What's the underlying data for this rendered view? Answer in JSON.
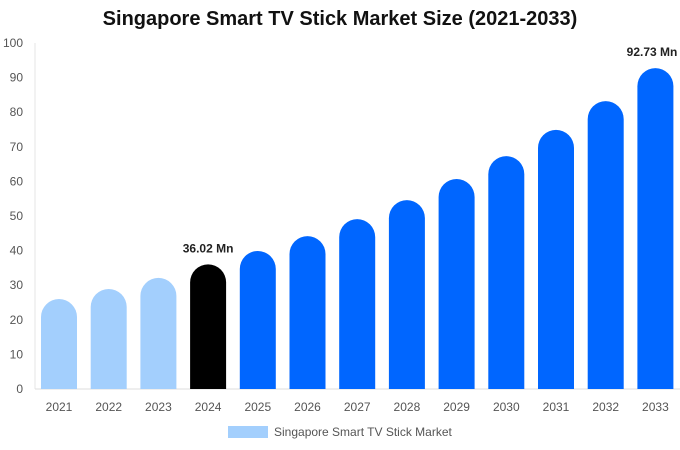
{
  "chart_data": {
    "type": "bar",
    "title": "Singapore Smart TV Stick Market Size (2021-2033)",
    "categories": [
      "2021",
      "2022",
      "2023",
      "2024",
      "2025",
      "2026",
      "2027",
      "2028",
      "2029",
      "2030",
      "2031",
      "2032",
      "2033"
    ],
    "series": [
      {
        "name": "Singapore Smart TV Stick Market",
        "values": [
          26.0,
          28.9,
          32.1,
          36.02,
          39.9,
          44.2,
          49.1,
          54.6,
          60.7,
          67.3,
          74.9,
          83.2,
          92.73
        ]
      }
    ],
    "data_labels": {
      "3": "36.02 Mn",
      "12": "92.73 Mn"
    },
    "ylim": [
      0,
      100
    ],
    "yticks": [
      0,
      10,
      20,
      30,
      40,
      50,
      60,
      70,
      80,
      90,
      100
    ],
    "xlabel": "",
    "ylabel": "",
    "grid": false,
    "legend": "bottom",
    "colors": {
      "historical": "#a3cffd",
      "current": "#000000",
      "forecast": "#0066ff"
    }
  }
}
